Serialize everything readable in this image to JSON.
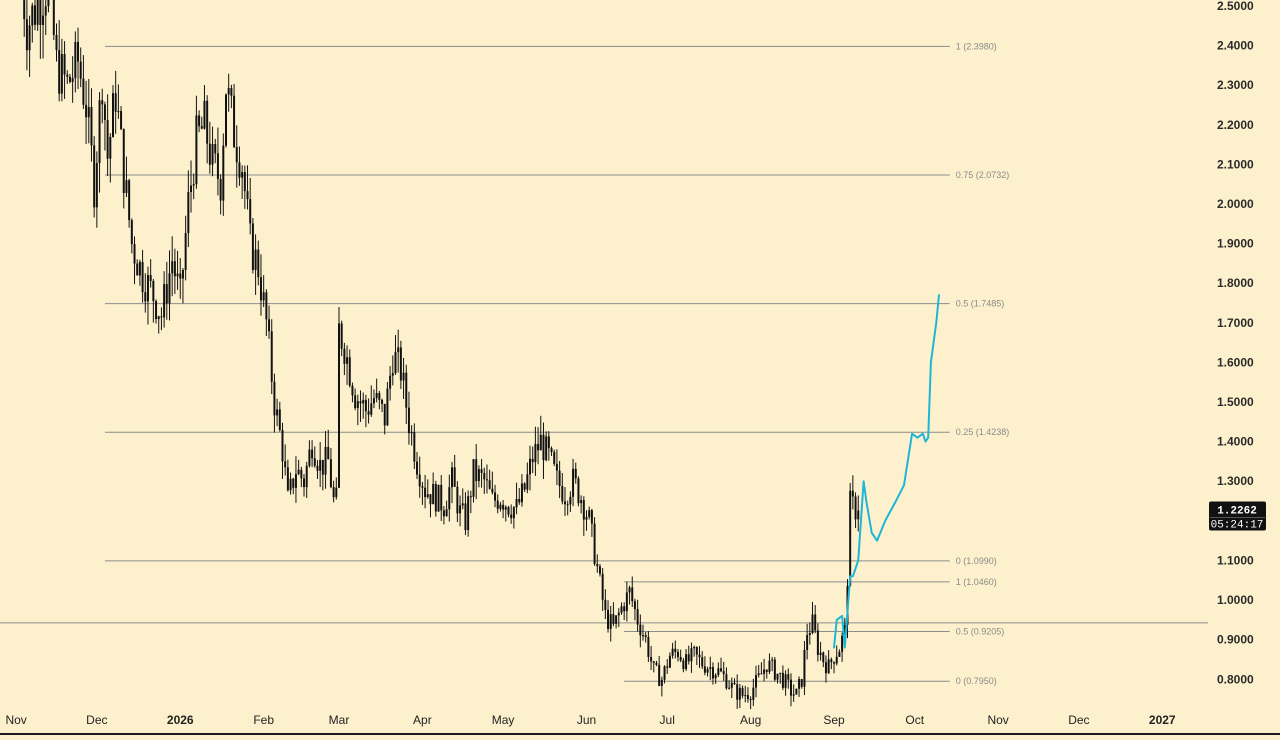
{
  "chart_data": {
    "type": "line",
    "y_axis": {
      "side": "right",
      "ylim": [
        0.735,
        2.515
      ],
      "ticks": [
        "2.5000",
        "2.4000",
        "2.3000",
        "2.2000",
        "2.1000",
        "2.0000",
        "1.9000",
        "1.8000",
        "1.7000",
        "1.6000",
        "1.5000",
        "1.4000",
        "1.3000",
        "1.2000",
        "1.1000",
        "1.0000",
        "0.9000",
        "0.8000"
      ]
    },
    "x_axis": {
      "xlim": [
        "2025-10-26",
        "2027-01-18"
      ],
      "ticks": [
        {
          "label": "Nov",
          "date": "2025-11-01",
          "bold": false
        },
        {
          "label": "Dec",
          "date": "2025-12-01",
          "bold": false
        },
        {
          "label": "2026",
          "date": "2026-01-01",
          "bold": true
        },
        {
          "label": "Feb",
          "date": "2026-02-01",
          "bold": false
        },
        {
          "label": "Mar",
          "date": "2026-03-01",
          "bold": false
        },
        {
          "label": "Apr",
          "date": "2026-04-01",
          "bold": false
        },
        {
          "label": "May",
          "date": "2026-05-01",
          "bold": false
        },
        {
          "label": "Jun",
          "date": "2026-06-01",
          "bold": false
        },
        {
          "label": "Jul",
          "date": "2026-07-01",
          "bold": false
        },
        {
          "label": "Aug",
          "date": "2026-08-01",
          "bold": false
        },
        {
          "label": "Sep",
          "date": "2026-09-01",
          "bold": false
        },
        {
          "label": "Oct",
          "date": "2026-10-01",
          "bold": false
        },
        {
          "label": "Nov",
          "date": "2026-11-01",
          "bold": false
        },
        {
          "label": "Dec",
          "date": "2026-12-01",
          "bold": false
        },
        {
          "label": "2027",
          "date": "2027-01-01",
          "bold": true
        }
      ]
    },
    "price_path": [
      [
        "2025-11-03",
        2.56
      ],
      [
        "2025-11-05",
        2.45
      ],
      [
        "2025-11-10",
        2.52
      ],
      [
        "2025-11-13",
        2.56
      ],
      [
        "2025-11-16",
        2.35
      ],
      [
        "2025-11-20",
        2.3
      ],
      [
        "2025-11-24",
        2.36
      ],
      [
        "2025-11-27",
        2.25
      ],
      [
        "2025-11-30",
        2.05
      ],
      [
        "2025-12-03",
        2.32
      ],
      [
        "2025-12-05",
        2.12
      ],
      [
        "2025-12-08",
        2.28
      ],
      [
        "2025-12-11",
        2.08
      ],
      [
        "2025-12-14",
        1.9
      ],
      [
        "2025-12-18",
        1.82
      ],
      [
        "2025-12-22",
        1.77
      ],
      [
        "2025-12-25",
        1.72
      ],
      [
        "2025-12-29",
        1.86
      ],
      [
        "2026-01-01",
        1.76
      ],
      [
        "2026-01-04",
        2.0
      ],
      [
        "2026-01-07",
        2.16
      ],
      [
        "2026-01-10",
        2.2
      ],
      [
        "2026-01-13",
        2.1
      ],
      [
        "2026-01-16",
        2.06
      ],
      [
        "2026-01-18",
        2.3
      ],
      [
        "2026-01-21",
        2.18
      ],
      [
        "2026-01-24",
        2.1
      ],
      [
        "2026-01-27",
        1.9
      ],
      [
        "2026-01-30",
        1.84
      ],
      [
        "2026-02-02",
        1.7
      ],
      [
        "2026-02-05",
        1.5
      ],
      [
        "2026-02-08",
        1.38
      ],
      [
        "2026-02-10",
        1.25
      ],
      [
        "2026-02-13",
        1.33
      ],
      [
        "2026-02-16",
        1.3
      ],
      [
        "2026-02-19",
        1.4
      ],
      [
        "2026-02-22",
        1.34
      ],
      [
        "2026-02-25",
        1.35
      ],
      [
        "2026-02-27",
        1.25
      ],
      [
        "2026-02-28",
        1.25
      ],
      [
        "2026-03-01",
        1.68
      ],
      [
        "2026-03-03",
        1.64
      ],
      [
        "2026-03-07",
        1.52
      ],
      [
        "2026-03-11",
        1.48
      ],
      [
        "2026-03-14",
        1.51
      ],
      [
        "2026-03-18",
        1.46
      ],
      [
        "2026-03-21",
        1.62
      ],
      [
        "2026-03-24",
        1.58
      ],
      [
        "2026-03-27",
        1.45
      ],
      [
        "2026-03-30",
        1.35
      ],
      [
        "2026-04-02",
        1.28
      ],
      [
        "2026-04-06",
        1.26
      ],
      [
        "2026-04-09",
        1.24
      ],
      [
        "2026-04-12",
        1.3
      ],
      [
        "2026-04-15",
        1.22
      ],
      [
        "2026-04-17",
        1.2
      ],
      [
        "2026-04-20",
        1.32
      ],
      [
        "2026-04-24",
        1.3
      ],
      [
        "2026-04-27",
        1.25
      ],
      [
        "2026-04-30",
        1.26
      ],
      [
        "2026-05-03",
        1.24
      ],
      [
        "2026-05-06",
        1.23
      ],
      [
        "2026-05-09",
        1.28
      ],
      [
        "2026-05-12",
        1.36
      ],
      [
        "2026-05-15",
        1.4
      ],
      [
        "2026-05-18",
        1.36
      ],
      [
        "2026-05-21",
        1.3
      ],
      [
        "2026-05-24",
        1.27
      ],
      [
        "2026-05-27",
        1.3
      ],
      [
        "2026-05-30",
        1.26
      ],
      [
        "2026-06-02",
        1.2
      ],
      [
        "2026-06-05",
        1.08
      ],
      [
        "2026-06-08",
        0.96
      ],
      [
        "2026-06-11",
        0.93
      ],
      [
        "2026-06-14",
        0.98
      ],
      [
        "2026-06-17",
        1.02
      ],
      [
        "2026-06-20",
        0.95
      ],
      [
        "2026-06-23",
        0.9
      ],
      [
        "2026-06-26",
        0.82
      ],
      [
        "2026-06-29",
        0.8
      ],
      [
        "2026-07-02",
        0.86
      ],
      [
        "2026-07-05",
        0.87
      ],
      [
        "2026-07-08",
        0.84
      ],
      [
        "2026-07-11",
        0.86
      ],
      [
        "2026-07-14",
        0.84
      ],
      [
        "2026-07-17",
        0.83
      ],
      [
        "2026-07-20",
        0.82
      ],
      [
        "2026-07-23",
        0.8
      ],
      [
        "2026-07-26",
        0.77
      ],
      [
        "2026-07-29",
        0.76
      ],
      [
        "2026-08-01",
        0.77
      ],
      [
        "2026-08-04",
        0.8
      ],
      [
        "2026-08-07",
        0.84
      ],
      [
        "2026-08-10",
        0.82
      ],
      [
        "2026-08-13",
        0.8
      ],
      [
        "2026-08-16",
        0.77
      ],
      [
        "2026-08-18",
        0.76
      ],
      [
        "2026-08-20",
        0.8
      ],
      [
        "2026-08-22",
        0.92
      ],
      [
        "2026-08-24",
        0.94
      ],
      [
        "2026-08-26",
        0.88
      ],
      [
        "2026-08-28",
        0.85
      ],
      [
        "2026-08-30",
        0.83
      ],
      [
        "2026-09-01",
        0.86
      ],
      [
        "2026-09-03",
        0.88
      ],
      [
        "2026-09-05",
        0.92
      ],
      [
        "2026-09-06",
        1.06
      ],
      [
        "2026-09-07",
        1.24
      ],
      [
        "2026-09-09",
        1.23
      ],
      [
        "2026-09-10",
        1.2262
      ]
    ],
    "projection_path": [
      [
        "2026-09-01",
        0.88
      ],
      [
        "2026-09-02",
        0.95
      ],
      [
        "2026-09-04",
        0.96
      ],
      [
        "2026-09-05",
        0.88
      ],
      [
        "2026-09-07",
        1.06
      ],
      [
        "2026-09-08",
        1.06
      ],
      [
        "2026-09-10",
        1.1
      ],
      [
        "2026-09-12",
        1.3
      ],
      [
        "2026-09-13",
        1.25
      ],
      [
        "2026-09-15",
        1.17
      ],
      [
        "2026-09-17",
        1.15
      ],
      [
        "2026-09-20",
        1.2
      ],
      [
        "2026-09-24",
        1.25
      ],
      [
        "2026-09-27",
        1.29
      ],
      [
        "2026-09-30",
        1.42
      ],
      [
        "2026-10-02",
        1.41
      ],
      [
        "2026-10-04",
        1.42
      ],
      [
        "2026-10-05",
        1.4
      ],
      [
        "2026-10-06",
        1.41
      ],
      [
        "2026-10-07",
        1.6
      ],
      [
        "2026-10-09",
        1.7
      ],
      [
        "2026-10-10",
        1.77
      ]
    ],
    "fib_upper": {
      "from": "2025-12-04",
      "to": "2026-10-14",
      "levels": [
        {
          "label": "1 (2.3980)",
          "value": 2.398
        },
        {
          "label": "0.75 (2.0732)",
          "value": 2.0732
        },
        {
          "label": "0.5 (1.7485)",
          "value": 1.7485
        },
        {
          "label": "0.25 (1.4238)",
          "value": 1.4238
        },
        {
          "label": "0 (1.0990)",
          "value": 1.099
        }
      ]
    },
    "fib_lower": {
      "from": "2026-06-15",
      "to": "2026-10-14",
      "levels": [
        {
          "label": "1 (1.0460)",
          "value": 1.046
        },
        {
          "label": "0.5 (0.9205)",
          "value": 0.9205
        },
        {
          "label": "0 (0.7950)",
          "value": 0.795
        }
      ]
    },
    "horizontal_line": {
      "value": 0.9425
    },
    "current_price": {
      "value": "1.2262",
      "countdown": "05:24:17",
      "level": 1.2262
    },
    "colors": {
      "background": "#fdf1cd",
      "price": "#111111",
      "projection": "#1eb6d6",
      "fib_line": "#8c8c8c",
      "price_label_bg": "#111111"
    }
  }
}
